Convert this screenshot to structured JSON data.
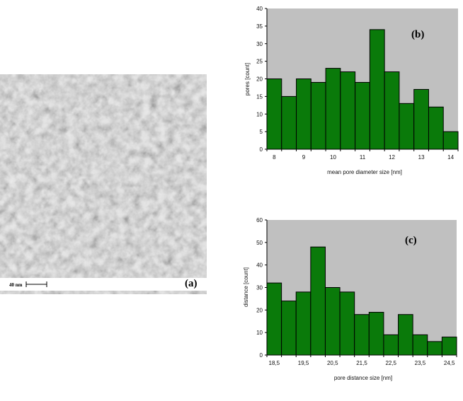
{
  "panels": {
    "a": {
      "label": "(a)",
      "scale_bar_text": "40 nm"
    }
  },
  "colors": {
    "bar_fill": "#0a7a0a",
    "bar_stroke": "#000000",
    "plot_background": "#c0c0c0",
    "axis": "#000000"
  },
  "chart_data": [
    {
      "type": "bar",
      "panel_label": "(b)",
      "xlabel": "mean pore diameter size [nm]",
      "ylabel": "pores [count]",
      "ylim": [
        0,
        40
      ],
      "yticks": [
        0,
        5,
        10,
        15,
        20,
        25,
        30,
        35,
        40
      ],
      "xticks": [
        "8",
        "9",
        "10",
        "11",
        "12",
        "13",
        "14"
      ],
      "grid": false,
      "values": [
        20,
        15,
        20,
        19,
        23,
        22,
        19,
        34,
        22,
        13,
        17,
        12,
        5
      ]
    },
    {
      "type": "bar",
      "panel_label": "(c)",
      "xlabel": "pore distance size [nm]",
      "ylabel": "distance [count]",
      "ylim": [
        0,
        60
      ],
      "yticks": [
        0,
        10,
        20,
        30,
        40,
        50,
        60
      ],
      "xticks": [
        "18,5",
        "19,5",
        "20,5",
        "21,5",
        "22,5",
        "23,5",
        "24,5"
      ],
      "grid": false,
      "values": [
        32,
        24,
        28,
        48,
        30,
        28,
        18,
        19,
        9,
        18,
        9,
        6,
        8
      ]
    }
  ]
}
